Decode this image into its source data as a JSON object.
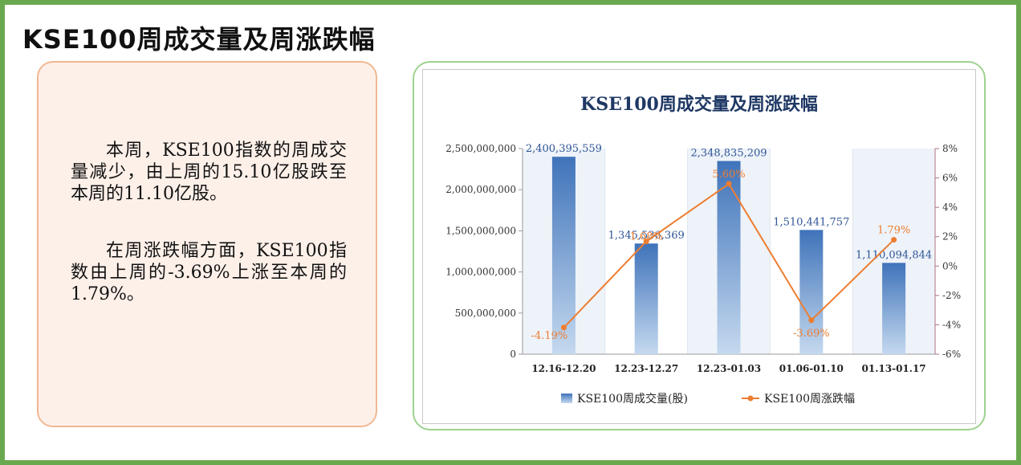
{
  "page": {
    "title": "KSE100周成交量及周涨跌幅",
    "paragraph1": "本周，KSE100指数的周成交量减少，由上周的15.10亿股跌至本周的11.10亿股。",
    "paragraph2": "在周涨跌幅方面，KSE100指数由上周的-3.69%上涨至本周的1.79%。"
  },
  "chart_data": {
    "type": "bar",
    "title": "KSE100周成交量及周涨跌幅",
    "categories": [
      "12.16-12.20",
      "12.23-12.27",
      "12.23-01.03",
      "01.06-01.10",
      "01.13-01.17"
    ],
    "series": [
      {
        "name": "KSE100周成交量(股)",
        "type": "bar",
        "axis": "left",
        "values": [
          2400395559,
          1345536369,
          2348835209,
          1510441757,
          1110094844
        ],
        "labels": [
          "2,400,395,559",
          "1,345,536,369",
          "2,348,835,209",
          "1,510,441,757",
          "1,110,094,844"
        ],
        "color": "#4a7ec2"
      },
      {
        "name": "KSE100周涨跌幅",
        "type": "line",
        "axis": "right",
        "values": [
          -4.19,
          1.68,
          5.6,
          -3.69,
          1.79
        ],
        "labels": [
          "-4.19%",
          "1.68%",
          "5.60%",
          "-3.69%",
          "1.79%"
        ],
        "color": "#ed7d31"
      }
    ],
    "ylim": [
      0,
      2500000000
    ],
    "yticks": [
      0,
      500000000,
      1000000000,
      1500000000,
      2000000000,
      2500000000
    ],
    "ytick_labels": [
      "0",
      "500,000,000",
      "1,000,000,000",
      "1,500,000,000",
      "2,000,000,000",
      "2,500,000,000"
    ],
    "y2lim": [
      -6,
      8
    ],
    "y2ticks": [
      -6,
      -4,
      -2,
      0,
      2,
      4,
      6,
      8
    ],
    "y2tick_labels": [
      "-6%",
      "-4%",
      "-2%",
      "0%",
      "2%",
      "4%",
      "6%",
      "8%"
    ],
    "legend": "bottom",
    "grid": false
  },
  "colors": {
    "frame_border": "#6aa84f",
    "panel_fill": "#fdf0e9",
    "panel_border": "#f0b894",
    "chart_border": "#9ed28f",
    "title_color": "#1f3864",
    "bar_color": "#4a7ec2",
    "line_color": "#ed7d31",
    "right_axis_color": "#b07080"
  }
}
